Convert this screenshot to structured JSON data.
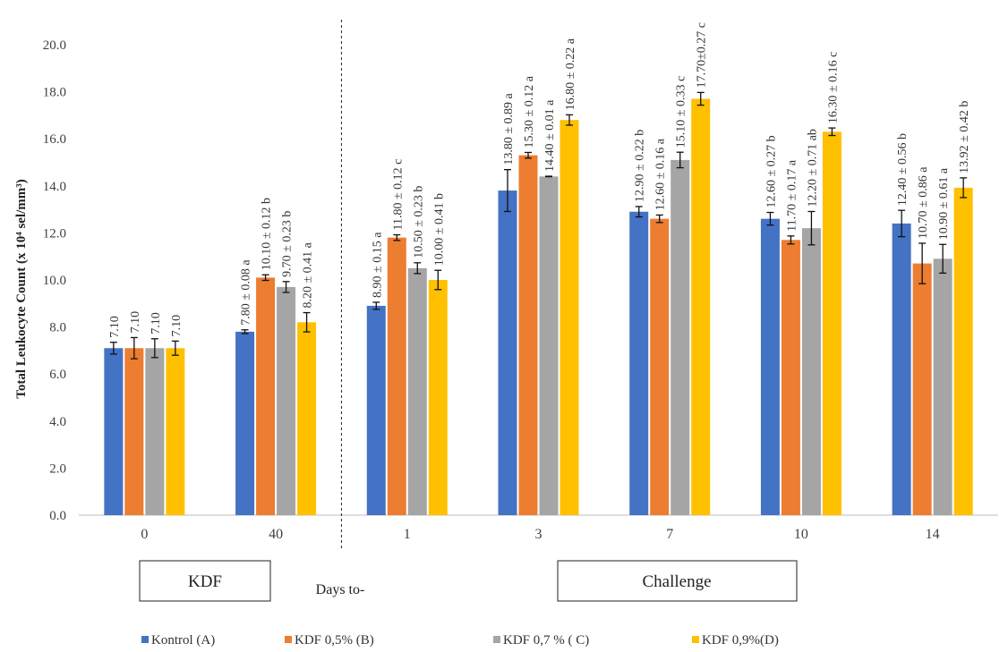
{
  "chart_data": {
    "type": "bar",
    "ylabel": "Total Leukocyte Count (x 10⁴ sel/mm³)",
    "xlabel": "Days to-",
    "ylim": [
      0,
      20
    ],
    "ytick_step": 2,
    "ytick_labels": [
      "0.0",
      "2.0",
      "4.0",
      "6.0",
      "8.0",
      "10.0",
      "12.0",
      "14.0",
      "16.0",
      "18.0",
      "20.0"
    ],
    "categories": [
      "0",
      "40",
      "1",
      "3",
      "7",
      "10",
      "14"
    ],
    "grid": false,
    "legend_position": "bottom",
    "group_boxes": [
      {
        "label": "KDF"
      },
      {
        "label": "Challenge"
      }
    ],
    "series": [
      {
        "name": "Kontrol (A)",
        "color": "#4472C4",
        "values": [
          7.1,
          7.8,
          8.9,
          13.8,
          12.9,
          12.6,
          12.4
        ],
        "errors": [
          0.25,
          0.08,
          0.15,
          0.89,
          0.22,
          0.27,
          0.56
        ],
        "labels": [
          "7.10",
          "7.80 ± 0.08 a",
          "8.90 ± 0.15 a",
          "13.80 ± 0.89 a",
          "12.90 ± 0.22 b",
          "12.60 ± 0.27 b",
          "12.40 ± 0.56 b"
        ]
      },
      {
        "name": "KDF 0,5% (B)",
        "color": "#ED7D31",
        "values": [
          7.1,
          10.1,
          11.8,
          15.3,
          12.6,
          11.7,
          10.7
        ],
        "errors": [
          0.45,
          0.12,
          0.12,
          0.12,
          0.16,
          0.17,
          0.86
        ],
        "labels": [
          "7.10",
          "10.10 ± 0.12 b",
          "11.80 ± 0.12 c",
          "15.30 ± 0.12 a",
          "12.60 ± 0.16 a",
          "11.70 ± 0.17 a",
          "10.70 ± 0.86 a"
        ]
      },
      {
        "name": "KDF 0,7 % ( C)",
        "color": "#A5A5A5",
        "values": [
          7.1,
          9.7,
          10.5,
          14.4,
          15.1,
          12.2,
          10.9
        ],
        "errors": [
          0.4,
          0.23,
          0.23,
          0.01,
          0.33,
          0.71,
          0.61
        ],
        "labels": [
          "7.10",
          "9.70 ± 0.23 b",
          "10.50 ± 0.23 b",
          "14.40 ± 0.01 a",
          "15.10 ± 0.33 c",
          "12.20 ± 0.71 ab",
          "10.90 ± 0.61 a"
        ]
      },
      {
        "name": "KDF 0,9%(D)",
        "color": "#FFC000",
        "values": [
          7.1,
          8.2,
          10.0,
          16.8,
          17.7,
          16.3,
          13.92
        ],
        "errors": [
          0.3,
          0.41,
          0.41,
          0.22,
          0.27,
          0.16,
          0.42
        ],
        "labels": [
          "7.10",
          "8.20 ± 0.41 a",
          "10.00 ± 0.41 b",
          "16.80 ± 0.22 a",
          "17.70±0.27 c",
          "16.30 ± 0.16 c",
          "13.92 ± 0.42 b"
        ]
      }
    ]
  }
}
